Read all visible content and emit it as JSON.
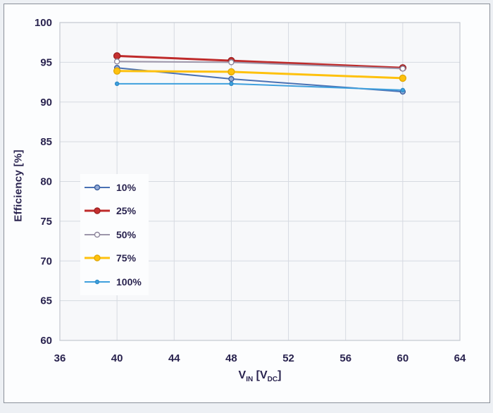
{
  "window": {
    "background": "#edf0f4",
    "frame_border": "#8a9099",
    "frame_fill": "#fcfdfe"
  },
  "chart_data": {
    "type": "line",
    "title": "",
    "ylabel": "Efficiency [%]",
    "xlabel_parts": {
      "base1": "V",
      "sub1": "IN",
      "base2": " [V",
      "sub2": "DC",
      "base3": "]"
    },
    "xlim": [
      36,
      64
    ],
    "ylim": [
      60,
      100
    ],
    "xticks": [
      "36",
      "40",
      "44",
      "48",
      "52",
      "56",
      "60",
      "64"
    ],
    "yticks": [
      "60",
      "65",
      "70",
      "75",
      "80",
      "85",
      "90",
      "95",
      "100"
    ],
    "grid": true,
    "legend_position": "middle-left",
    "x": [
      40,
      48,
      60
    ],
    "series": [
      {
        "name": "10%",
        "values": [
          94.3,
          92.9,
          91.3
        ],
        "color": "#4a71b4",
        "marker_fill": "#93abd7",
        "marker_stroke": "#3c5f9e",
        "marker_r": 3.5,
        "width": 2
      },
      {
        "name": "25%",
        "values": [
          95.8,
          95.2,
          94.3
        ],
        "color": "#bf2b2b",
        "marker_fill": "#c53030",
        "marker_stroke": "#9e2121",
        "marker_r": 4.5,
        "width": 3
      },
      {
        "name": "50%",
        "values": [
          95.1,
          95.0,
          94.2
        ],
        "color": "#9d96aa",
        "marker_fill": "#ffffff",
        "marker_stroke": "#8d869c",
        "marker_r": 3.5,
        "width": 2
      },
      {
        "name": "75%",
        "values": [
          93.9,
          93.8,
          93.0
        ],
        "color": "#fec10d",
        "marker_fill": "#fec10d",
        "marker_stroke": "#e2a908",
        "marker_r": 4.5,
        "width": 3
      },
      {
        "name": "100%",
        "values": [
          92.3,
          92.3,
          91.5
        ],
        "color": "#3fa0dd",
        "marker_fill": "#3fa0dd",
        "marker_stroke": "#2f8cc8",
        "marker_r": 2.5,
        "width": 2
      }
    ],
    "axis_text_color": "#29234f",
    "grid_color": "#d6dae1",
    "plot_border_color": "#c3c8d0",
    "plot_bg": "#f7f8fa"
  }
}
